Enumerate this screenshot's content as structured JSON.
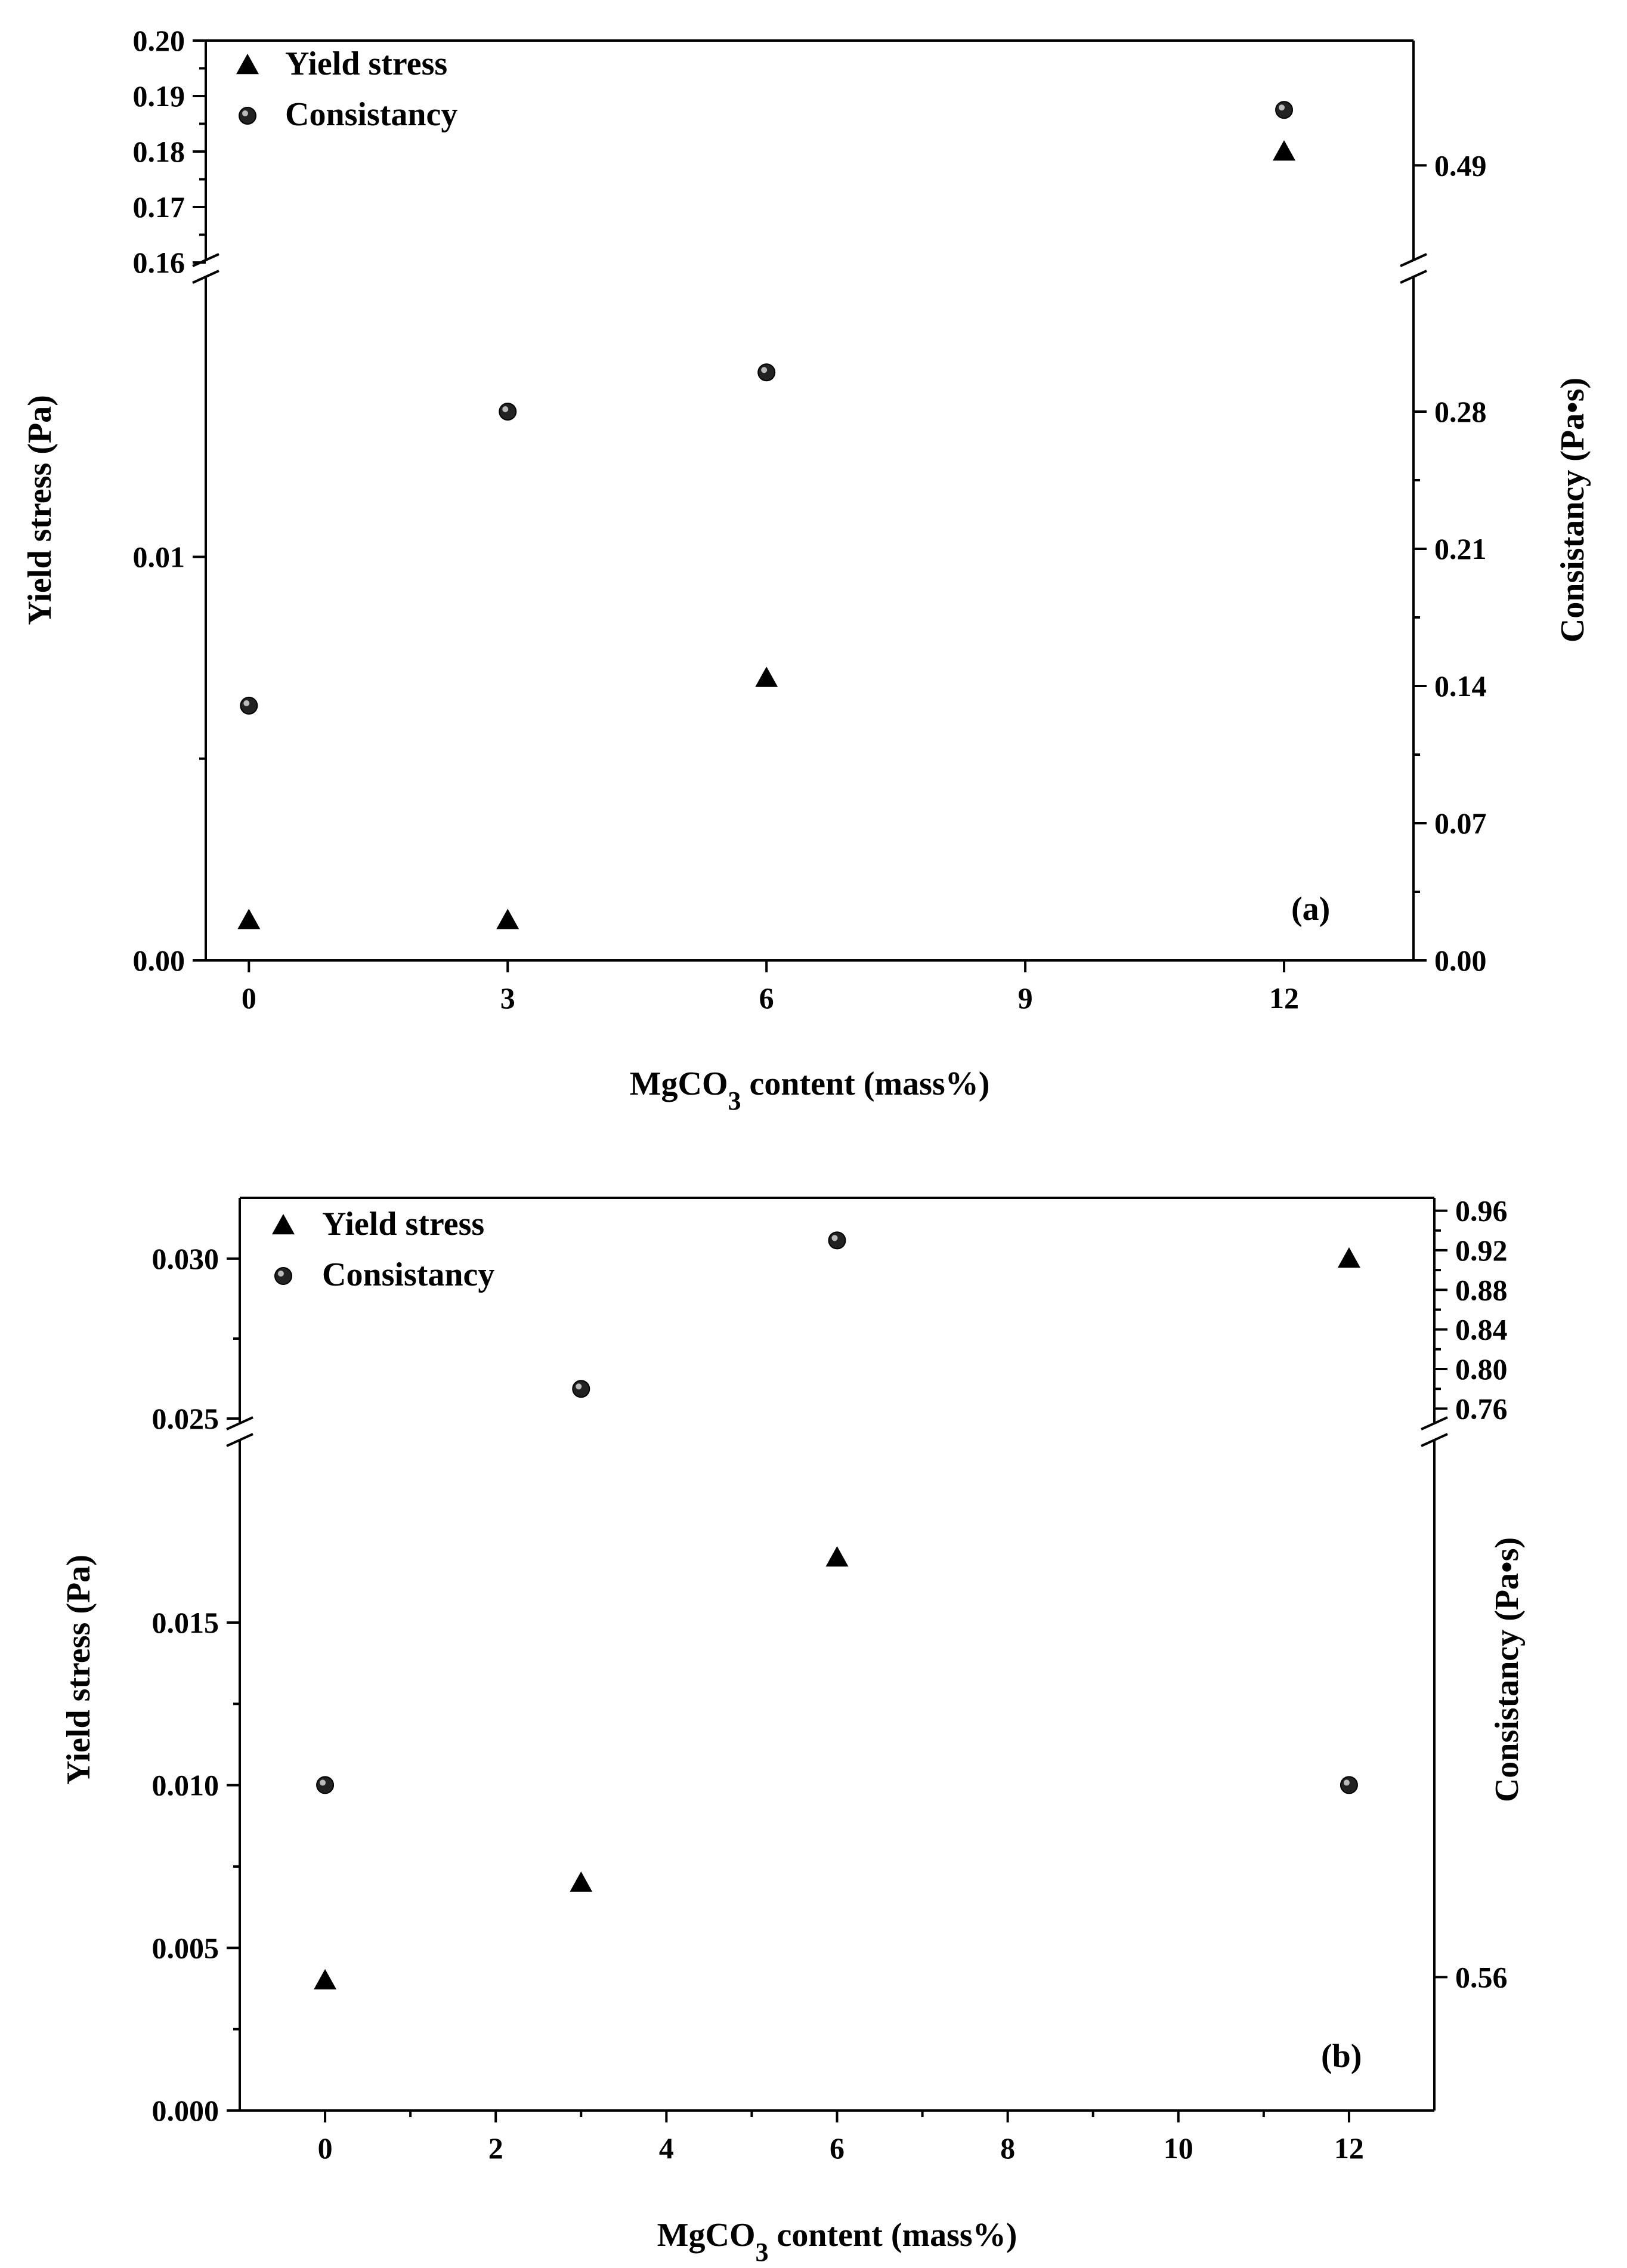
{
  "chart_data": [
    {
      "id": "a",
      "type": "scatter",
      "panel_label": "(a)",
      "xlabel": {
        "main": "MgCO",
        "sub": "3",
        "rest": " content (mass%)"
      },
      "ylabel_left": "Yield stress (Pa)",
      "ylabel_right": "Consistancy (Pa•s)",
      "x_ticks": [
        "0",
        "3",
        "6",
        "9",
        "12"
      ],
      "xlim": [
        -0.5,
        13.5
      ],
      "y_left_broken": {
        "lower": {
          "range": [
            0,
            0.017
          ],
          "ticks": [
            "0.00",
            "0.01"
          ]
        },
        "upper": {
          "range": [
            0.16,
            0.2
          ],
          "ticks": [
            "0.16",
            "0.17",
            "0.18",
            "0.19",
            "0.20"
          ]
        }
      },
      "y_right_broken": {
        "lower": {
          "range": [
            0,
            0.35
          ],
          "ticks": [
            "0.00",
            "0.07",
            "0.14",
            "0.21",
            "0.28"
          ]
        },
        "upper": {
          "range": [
            0.455,
            0.535
          ],
          "ticks": [
            "0.49"
          ]
        }
      },
      "legend": [
        "Yield stress",
        "Consistancy"
      ],
      "series": [
        {
          "name": "Yield stress",
          "axis": "left",
          "marker": "triangle",
          "x": [
            0,
            3,
            6,
            12
          ],
          "values": [
            0.001,
            0.001,
            0.007,
            0.18
          ]
        },
        {
          "name": "Consistancy",
          "axis": "right",
          "marker": "circle",
          "x": [
            0,
            3,
            6,
            12
          ],
          "values": [
            0.13,
            0.28,
            0.3,
            0.51
          ]
        }
      ]
    },
    {
      "id": "b",
      "type": "scatter",
      "panel_label": "(b)",
      "xlabel": {
        "main": "MgCO",
        "sub": "3",
        "rest": " content (mass%)"
      },
      "ylabel_left": "Yield stress (Pa)",
      "ylabel_right": "Consistancy (Pa•s)",
      "x_ticks": [
        "0",
        "2",
        "4",
        "6",
        "8",
        "10",
        "12"
      ],
      "xlim": [
        -1,
        13
      ],
      "y_left_broken": {
        "lower": {
          "range": [
            0,
            0.0205
          ],
          "ticks": [
            "0.000",
            "0.005",
            "0.010",
            "0.015"
          ]
        },
        "upper": {
          "range": [
            0.025,
            0.0319
          ],
          "ticks": [
            "0.025",
            "0.030"
          ]
        }
      },
      "y_right_broken": {
        "lower": {
          "range": [
            0.52,
            0.72
          ],
          "ticks": [
            "0.56"
          ]
        },
        "upper": {
          "range": [
            0.75,
            0.973
          ],
          "ticks": [
            "0.76",
            "0.80",
            "0.84",
            "0.88",
            "0.92",
            "0.96"
          ]
        }
      },
      "legend": [
        "Yield stress",
        "Consistancy"
      ],
      "series": [
        {
          "name": "Yield stress",
          "axis": "left",
          "marker": "triangle",
          "x": [
            0,
            3,
            6,
            12
          ],
          "values": [
            0.004,
            0.007,
            0.017,
            0.03
          ]
        },
        {
          "name": "Consistancy",
          "axis": "right",
          "marker": "circle",
          "x": [
            0,
            3,
            6,
            12
          ],
          "values": [
            0.6176,
            0.78,
            0.93,
            0.6176
          ]
        }
      ]
    }
  ]
}
